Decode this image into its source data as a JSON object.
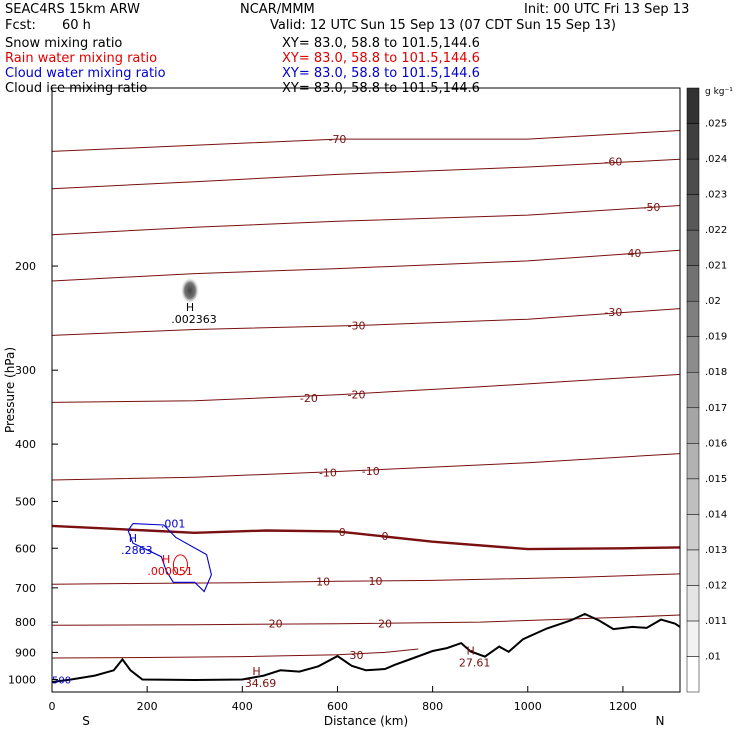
{
  "header": {
    "model": "SEAC4RS 15km ARW",
    "center": "NCAR/MMM",
    "init": "Init: 00 UTC Fri 13 Sep 13",
    "fcst_label": "Fcst:",
    "fcst_value": "60 h",
    "valid": "Valid: 12 UTC Sun 15 Sep 13 (07 CDT Sun 15 Sep 13)"
  },
  "fields": [
    {
      "name": "Snow mixing ratio",
      "xy": "XY=  83.0, 58.8 to 101.5,144.6",
      "color": "#000000"
    },
    {
      "name": "Rain water mixing ratio",
      "xy": "XY=  83.0, 58.8 to 101.5,144.6",
      "color": "#e00000"
    },
    {
      "name": "Cloud water mixing ratio",
      "xy": "XY=  83.0, 58.8 to 101.5,144.6",
      "color": "#0000d0"
    },
    {
      "name": "Cloud ice mixing ratio",
      "xy": "XY=  83.0, 58.8 to 101.5,144.6",
      "color": "#000000"
    }
  ],
  "colors": {
    "temperature": "#7a1010",
    "terrain": "#000000",
    "cloud_water": "#0000d0",
    "rain_water": "#e00000",
    "snow_shade": "#555555"
  },
  "chart_data": {
    "type": "cross-section",
    "xlabel": "Distance (km)",
    "ylabel": "Pressure (hPa)",
    "xlim": [
      0,
      1320
    ],
    "ylim": [
      1050,
      100
    ],
    "y_scale": "log",
    "x_ticks": [
      0,
      200,
      400,
      600,
      800,
      1000,
      1200
    ],
    "y_ticks": [
      200,
      300,
      400,
      500,
      600,
      700,
      800,
      900,
      1000
    ],
    "x_end_labels": {
      "left": "S",
      "right": "N"
    },
    "colorbar": {
      "units": "g kg⁻¹",
      "ticks": [
        ".01",
        ".011",
        ".012",
        ".013",
        ".014",
        ".015",
        ".016",
        ".017",
        ".018",
        ".019",
        ".02",
        ".021",
        ".022",
        ".023",
        ".024",
        ".025"
      ]
    },
    "terrain": [
      [
        0,
        1010
      ],
      [
        40,
        1000
      ],
      [
        90,
        985
      ],
      [
        130,
        965
      ],
      [
        148,
        925
      ],
      [
        165,
        965
      ],
      [
        190,
        1000
      ],
      [
        300,
        1002
      ],
      [
        400,
        1000
      ],
      [
        445,
        985
      ],
      [
        480,
        965
      ],
      [
        520,
        970
      ],
      [
        560,
        950
      ],
      [
        600,
        913
      ],
      [
        630,
        948
      ],
      [
        660,
        965
      ],
      [
        700,
        960
      ],
      [
        720,
        945
      ],
      [
        760,
        920
      ],
      [
        800,
        895
      ],
      [
        830,
        885
      ],
      [
        860,
        868
      ],
      [
        880,
        897
      ],
      [
        910,
        915
      ],
      [
        940,
        880
      ],
      [
        960,
        898
      ],
      [
        990,
        855
      ],
      [
        1040,
        820
      ],
      [
        1090,
        795
      ],
      [
        1120,
        775
      ],
      [
        1150,
        795
      ],
      [
        1180,
        822
      ],
      [
        1220,
        815
      ],
      [
        1250,
        818
      ],
      [
        1280,
        792
      ],
      [
        1310,
        805
      ],
      [
        1320,
        815
      ]
    ],
    "isotherms": [
      {
        "label": "-70",
        "points": [
          [
            0,
            128
          ],
          [
            300,
            125
          ],
          [
            600,
            122
          ],
          [
            1000,
            122
          ],
          [
            1320,
            118
          ]
        ],
        "labels_at": [
          [
            600,
            122
          ]
        ]
      },
      {
        "label": "-60",
        "points": [
          [
            0,
            148
          ],
          [
            300,
            144
          ],
          [
            600,
            140
          ],
          [
            1000,
            136
          ],
          [
            1320,
            132
          ]
        ],
        "labels_at": [
          [
            1180,
            133
          ]
        ]
      },
      {
        "label": "-50",
        "points": [
          [
            0,
            177
          ],
          [
            300,
            172
          ],
          [
            600,
            168
          ],
          [
            1000,
            164
          ],
          [
            1320,
            158
          ]
        ],
        "labels_at": [
          [
            1260,
            159
          ]
        ]
      },
      {
        "label": "-40",
        "points": [
          [
            0,
            212
          ],
          [
            300,
            206
          ],
          [
            600,
            202
          ],
          [
            1000,
            196
          ],
          [
            1320,
            188
          ]
        ],
        "labels_at": [
          [
            1220,
            190
          ]
        ]
      },
      {
        "label": "-30",
        "points": [
          [
            0,
            262
          ],
          [
            300,
            256
          ],
          [
            650,
            252
          ],
          [
            1000,
            246
          ],
          [
            1320,
            236
          ]
        ],
        "labels_at": [
          [
            640,
            252
          ],
          [
            1180,
            239
          ]
        ]
      },
      {
        "label": "-20",
        "points": [
          [
            0,
            340
          ],
          [
            300,
            338
          ],
          [
            600,
            330
          ],
          [
            900,
            320
          ],
          [
            1320,
            305
          ]
        ],
        "labels_at": [
          [
            540,
            334
          ],
          [
            640,
            330
          ]
        ]
      },
      {
        "label": "-10",
        "points": [
          [
            0,
            460
          ],
          [
            300,
            455
          ],
          [
            600,
            445
          ],
          [
            1000,
            430
          ],
          [
            1320,
            415
          ]
        ],
        "labels_at": [
          [
            580,
            447
          ],
          [
            670,
            444
          ]
        ]
      },
      {
        "label": "0",
        "points": [
          [
            0,
            550
          ],
          [
            100,
            555
          ],
          [
            200,
            560
          ],
          [
            300,
            565
          ],
          [
            450,
            560
          ],
          [
            600,
            562
          ],
          [
            800,
            585
          ],
          [
            1000,
            602
          ],
          [
            1200,
            600
          ],
          [
            1320,
            598
          ]
        ],
        "labels_at": [
          [
            610,
            563
          ],
          [
            700,
            572
          ]
        ],
        "bold": true
      },
      {
        "label": "10",
        "points": [
          [
            0,
            690
          ],
          [
            200,
            688
          ],
          [
            400,
            686
          ],
          [
            600,
            682
          ],
          [
            800,
            680
          ],
          [
            1100,
            672
          ],
          [
            1320,
            663
          ]
        ],
        "labels_at": [
          [
            570,
            683
          ],
          [
            680,
            681
          ]
        ]
      },
      {
        "label": "20",
        "points": [
          [
            0,
            810
          ],
          [
            300,
            808
          ],
          [
            600,
            805
          ],
          [
            900,
            800
          ],
          [
            1200,
            785
          ],
          [
            1320,
            778
          ]
        ],
        "labels_at": [
          [
            470,
            805
          ],
          [
            700,
            804
          ]
        ]
      },
      {
        "label": "30",
        "points": [
          [
            0,
            920
          ],
          [
            200,
            918
          ],
          [
            400,
            915
          ],
          [
            600,
            908
          ],
          [
            700,
            900
          ],
          [
            770,
            888
          ]
        ],
        "labels_at": [
          [
            640,
            909
          ]
        ]
      }
    ],
    "maxima": [
      {
        "label": "H",
        "value": ".002363",
        "x": 290,
        "p": 240,
        "color": "#000000"
      },
      {
        "label": "H",
        "value": ".2863",
        "x": 170,
        "p": 590,
        "color": "#0000d0"
      },
      {
        "label": "H",
        "value": ".000051",
        "x": 240,
        "p": 640,
        "color": "#e00000"
      },
      {
        "label": "H",
        "value": "34.69",
        "x": 430,
        "p": 990,
        "color": "#7a1010"
      },
      {
        "label": "H",
        "value": "27.61",
        "x": 880,
        "p": 915,
        "color": "#7a1010"
      }
    ],
    "cloud_water_contour": {
      "label": ".001",
      "points": [
        [
          170,
          545
        ],
        [
          235,
          548
        ],
        [
          260,
          575
        ],
        [
          325,
          615
        ],
        [
          335,
          665
        ],
        [
          320,
          710
        ],
        [
          300,
          685
        ],
        [
          255,
          685
        ],
        [
          240,
          655
        ],
        [
          230,
          620
        ],
        [
          170,
          588
        ],
        [
          160,
          560
        ],
        [
          170,
          545
        ]
      ]
    },
    "edge_label": "500"
  }
}
